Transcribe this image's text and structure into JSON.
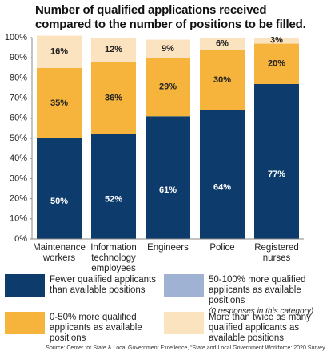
{
  "chart_data": {
    "type": "stacked_bar",
    "title": "Number of qualified applications received compared to the number of positions to be filled.",
    "categories": [
      "Maintenance workers",
      "Information technology employees",
      "Engineers",
      "Police",
      "Registered nurses"
    ],
    "series": [
      {
        "name": "Fewer qualified applicants than available positions",
        "color": "#0d3c6c",
        "label_color": "#ffffff",
        "values": [
          50,
          52,
          61,
          64,
          77
        ],
        "value_labels": [
          "50%",
          "52%",
          "61%",
          "64%",
          "77%"
        ]
      },
      {
        "name": "50-100% more qualified applicants as available positions",
        "note": "(0 responses in this category)",
        "color": "#9fb2d3",
        "values": [
          0,
          0,
          0,
          0,
          0
        ]
      },
      {
        "name": "0-50% more qualified applicants as available positions",
        "color": "#f6b43c",
        "label_color": "#222222",
        "values": [
          35,
          36,
          29,
          30,
          20
        ],
        "value_labels": [
          "35%",
          "36%",
          "29%",
          "30%",
          "20%"
        ]
      },
      {
        "name": "More than twice as many qualified applicants as available positions",
        "color": "#fce3bf",
        "label_color": "#222222",
        "values": [
          16,
          12,
          9,
          6,
          3
        ],
        "value_labels": [
          "16%",
          "12%",
          "9%",
          "6%",
          "3%"
        ]
      }
    ],
    "ylim": [
      0,
      100
    ],
    "yticks": [
      {
        "value": 0,
        "label": "0%"
      },
      {
        "value": 10,
        "label": "10%"
      },
      {
        "value": 20,
        "label": "20%"
      },
      {
        "value": 30,
        "label": "30%"
      },
      {
        "value": 40,
        "label": "40%"
      },
      {
        "value": 50,
        "label": "50%"
      },
      {
        "value": 60,
        "label": "60%"
      },
      {
        "value": 70,
        "label": "70%"
      },
      {
        "value": 80,
        "label": "80%"
      },
      {
        "value": 90,
        "label": "90%"
      },
      {
        "value": 100,
        "label": "100%"
      }
    ],
    "grid": false,
    "source": "Source: Center for State & Local Government Excellence, “State and Local Government Workforce: 2020 Survey."
  }
}
